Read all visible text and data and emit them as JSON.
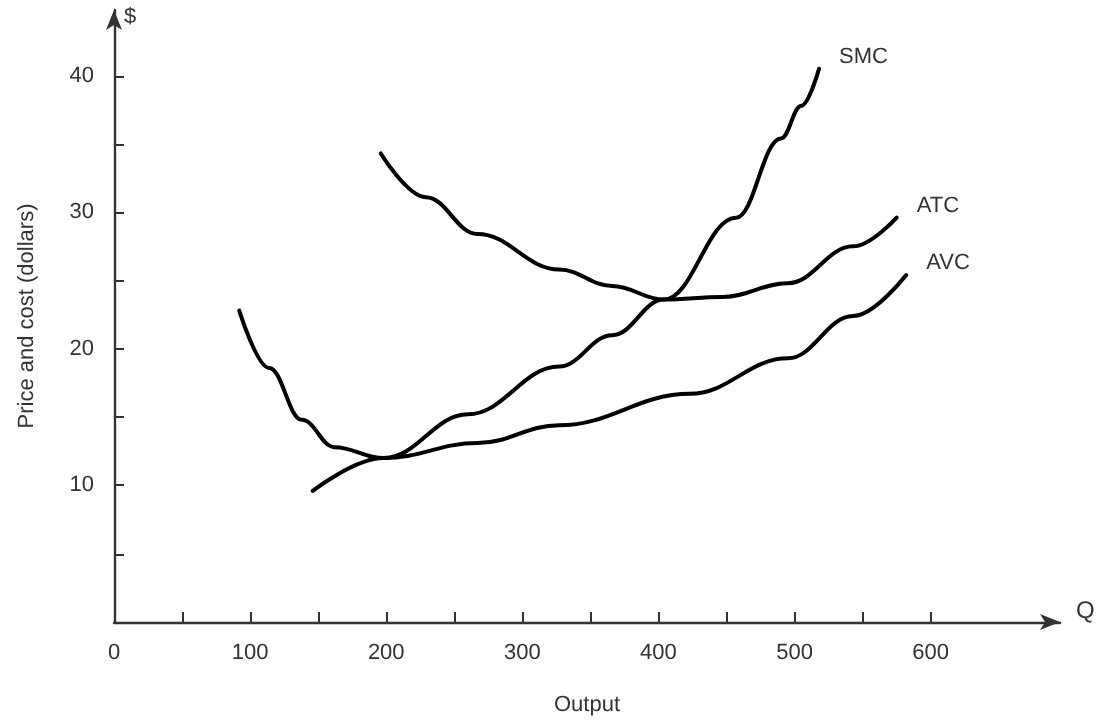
{
  "chart_data": {
    "type": "line",
    "xlabel": "Output",
    "ylabel": "Price and cost (dollars)",
    "annotations": [
      "$",
      "Q"
    ],
    "xlim": [
      0,
      695
    ],
    "ylim": [
      0,
      44.8
    ],
    "xticks": [
      {
        "value": 0,
        "label": "0"
      },
      {
        "value": 50,
        "label": null
      },
      100,
      {
        "value": 150,
        "label": null
      },
      200,
      {
        "value": 250,
        "label": null
      },
      300,
      {
        "value": 350,
        "label": null
      },
      400,
      {
        "value": 450,
        "label": null
      },
      500,
      {
        "value": 550,
        "label": null
      },
      600
    ],
    "yticks": [
      {
        "value": 5,
        "label": null
      },
      10,
      {
        "value": 15,
        "label": null
      },
      20,
      {
        "value": 25,
        "label": null
      },
      30,
      {
        "value": 35,
        "label": null
      },
      40
    ],
    "grid": false,
    "marker": "none",
    "line_style": "solid",
    "series": [
      {
        "name": "SMC",
        "color": "#000000",
        "x": [
          146,
          198,
          260,
          327,
          366,
          404,
          457,
          490,
          505,
          518
        ],
        "values": [
          9.6,
          12.0,
          15.2,
          18.7,
          21.0,
          23.6,
          29.6,
          35.4,
          37.8,
          40.5
        ]
      },
      {
        "name": "ATC",
        "color": "#000000",
        "x": [
          196,
          229,
          267,
          327,
          366,
          404,
          447,
          495,
          543,
          575
        ],
        "values": [
          34.3,
          31.1,
          28.4,
          25.8,
          24.6,
          23.6,
          23.8,
          24.8,
          27.5,
          29.6
        ]
      },
      {
        "name": "AVC",
        "color": "#000000",
        "x": [
          92,
          114,
          138,
          162,
          198,
          267,
          327,
          423,
          495,
          543,
          582
        ],
        "values": [
          22.8,
          18.6,
          14.8,
          12.8,
          12.0,
          13.1,
          14.4,
          16.7,
          19.3,
          22.4,
          25.4
        ]
      }
    ]
  }
}
